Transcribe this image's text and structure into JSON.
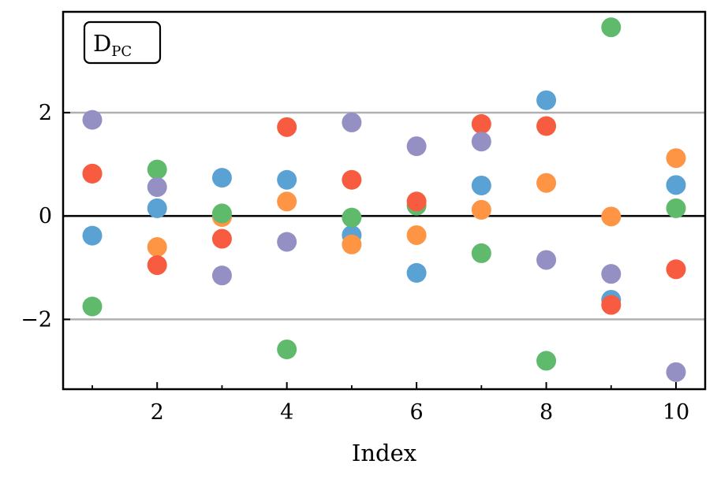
{
  "chart_data": {
    "type": "scatter",
    "title": "",
    "xlabel": "Index",
    "ylabel": "",
    "xlim": [
      0.55,
      10.45
    ],
    "ylim": [
      -3.35,
      3.95
    ],
    "xticks_major": [
      2,
      4,
      6,
      8,
      10
    ],
    "xticks_minor": [
      1,
      3,
      5,
      7,
      9
    ],
    "xtick_labels": [
      "2",
      "4",
      "6",
      "8",
      "10"
    ],
    "yticks": [
      -2,
      0,
      2
    ],
    "ytick_labels": [
      "−2",
      "0",
      "2"
    ],
    "hlines": [
      {
        "y": 2,
        "color": "#b0b0b0"
      },
      {
        "y": -2,
        "color": "#b0b0b0"
      },
      {
        "y": 0,
        "color": "#000000"
      }
    ],
    "annotation": {
      "main": "D",
      "subscript": "PC",
      "position": "top-left"
    },
    "grid": false,
    "series": [
      {
        "color": "#5aa2d3",
        "points": [
          [
            1,
            -0.38
          ],
          [
            2,
            0.15
          ],
          [
            3,
            0.74
          ],
          [
            4,
            0.7
          ],
          [
            5,
            -0.37
          ],
          [
            6,
            -1.1
          ],
          [
            7,
            0.59
          ],
          [
            8,
            2.24
          ],
          [
            9,
            -1.62
          ],
          [
            10,
            0.6
          ]
        ]
      },
      {
        "color": "#fd9545",
        "points": [
          [
            1,
            0.82
          ],
          [
            2,
            -0.6
          ],
          [
            3,
            -0.02
          ],
          [
            4,
            0.28
          ],
          [
            5,
            -0.55
          ],
          [
            6,
            -0.37
          ],
          [
            7,
            0.12
          ],
          [
            8,
            0.64
          ],
          [
            9,
            -0.01
          ],
          [
            10,
            1.12
          ]
        ]
      },
      {
        "color": "#5fbb6b",
        "points": [
          [
            1,
            -1.75
          ],
          [
            2,
            0.9
          ],
          [
            3,
            0.05
          ],
          [
            4,
            -2.58
          ],
          [
            5,
            -0.03
          ],
          [
            6,
            0.2
          ],
          [
            7,
            -0.72
          ],
          [
            8,
            -2.8
          ],
          [
            9,
            3.65
          ],
          [
            10,
            0.15
          ]
        ]
      },
      {
        "color": "#f75c40",
        "points": [
          [
            1,
            0.82
          ],
          [
            2,
            -0.95
          ],
          [
            3,
            -0.44
          ],
          [
            4,
            1.72
          ],
          [
            5,
            0.7
          ],
          [
            6,
            0.28
          ],
          [
            7,
            1.78
          ],
          [
            8,
            1.74
          ],
          [
            9,
            -1.72
          ],
          [
            10,
            -1.03
          ]
        ]
      },
      {
        "color": "#9490c4",
        "points": [
          [
            1,
            1.86
          ],
          [
            2,
            0.56
          ],
          [
            3,
            -1.15
          ],
          [
            4,
            -0.5
          ],
          [
            5,
            1.81
          ],
          [
            6,
            1.35
          ],
          [
            7,
            1.44
          ],
          [
            8,
            -0.85
          ],
          [
            9,
            -1.12
          ],
          [
            10,
            -3.02
          ]
        ]
      }
    ]
  }
}
